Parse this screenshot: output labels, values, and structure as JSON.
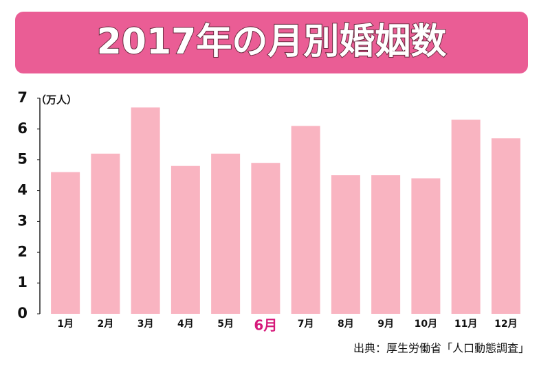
{
  "chart_data": {
    "type": "bar",
    "title": "2017年の月別婚姻数",
    "unit_label": "（万人）",
    "source": "出典：厚生労働省「人口動態調査」",
    "categories": [
      "1月",
      "2月",
      "3月",
      "4月",
      "5月",
      "6月",
      "7月",
      "8月",
      "9月",
      "10月",
      "11月",
      "12月"
    ],
    "values": [
      4.6,
      5.2,
      6.7,
      4.8,
      5.2,
      4.9,
      6.1,
      4.5,
      4.5,
      4.4,
      6.3,
      5.7
    ],
    "color": "#f9b4c1",
    "highlight_index": 5,
    "highlight_color": "#d6187a",
    "ylim": [
      0,
      7
    ],
    "yticks": [
      0,
      1,
      2,
      3,
      4,
      5,
      6,
      7
    ],
    "grid": false
  }
}
